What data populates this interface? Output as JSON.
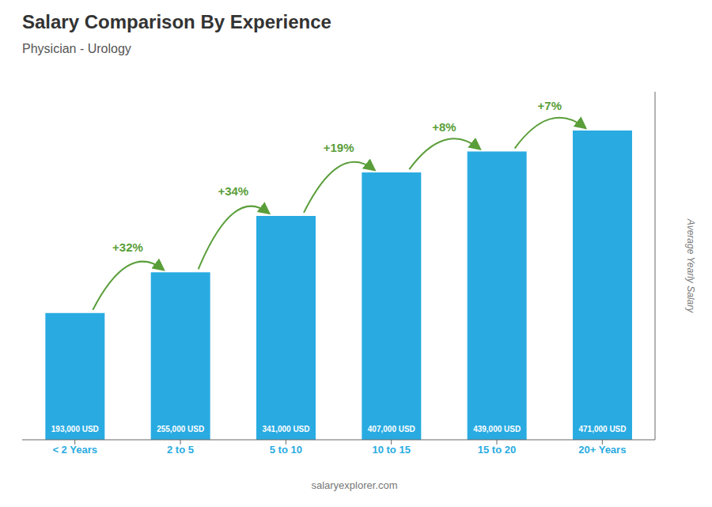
{
  "chart_data": {
    "type": "bar",
    "title": "Salary Comparison By Experience",
    "subtitle": "Physician - Urology",
    "categories": [
      "< 2 Years",
      "2 to 5",
      "5 to 10",
      "10 to 15",
      "15 to 20",
      "20+ Years"
    ],
    "values": [
      193000,
      255000,
      341000,
      407000,
      439000,
      471000
    ],
    "value_labels": [
      "193,000 USD",
      "255,000 USD",
      "341,000 USD",
      "407,000 USD",
      "439,000 USD",
      "471,000 USD"
    ],
    "data_labels": true,
    "annotations": [
      "+32%",
      "+34%",
      "+19%",
      "+8%",
      "+7%"
    ],
    "color": "#29ABE2",
    "ylabel": "Average Yearly Salary",
    "footer": "salaryexplorer.com",
    "ylim": [
      0,
      530000
    ],
    "tick_labels": "x",
    "grid": false
  }
}
